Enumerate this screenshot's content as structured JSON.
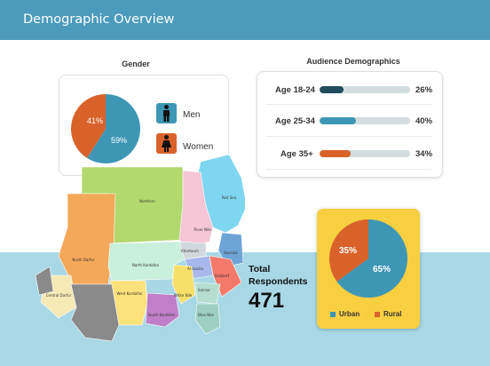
{
  "header": {
    "title": "Demographic Overview"
  },
  "gender": {
    "title": "Gender",
    "men": {
      "label": "Men",
      "pct_label": "59%",
      "share": 59,
      "color": "#3e96b5"
    },
    "women": {
      "label": "Women",
      "pct_label": "41%",
      "share": 41,
      "color": "#d9622a"
    }
  },
  "audience": {
    "title": "Audience Demographics",
    "rows": [
      {
        "label": "Age 18-24",
        "pct_label": "26%",
        "value": 26,
        "color": "#1f4b5c"
      },
      {
        "label": "Age 25-34",
        "pct_label": "40%",
        "value": 40,
        "color": "#3e96b5"
      },
      {
        "label": "Age 35+",
        "pct_label": "34%",
        "value": 34,
        "color": "#d9622a"
      }
    ]
  },
  "map": {
    "regions": [
      "Northern",
      "Red Sea",
      "River Nile",
      "Khartoum",
      "Kassala",
      "Al Gezira",
      "Gedaref",
      "White Nile",
      "Sennar",
      "Blue Nile",
      "North Darfur",
      "North Kordofan",
      "West Kordofan",
      "South Kordofan",
      "Central Darfur"
    ]
  },
  "total": {
    "label_line1": "Total",
    "label_line2": "Respondents",
    "value": "471"
  },
  "location": {
    "urban": {
      "label": "Urban",
      "pct_label": "65%",
      "share": 65,
      "color": "#3e96b5"
    },
    "rural": {
      "label": "Rural",
      "pct_label": "35%",
      "share": 35,
      "color": "#d9622a"
    }
  }
}
